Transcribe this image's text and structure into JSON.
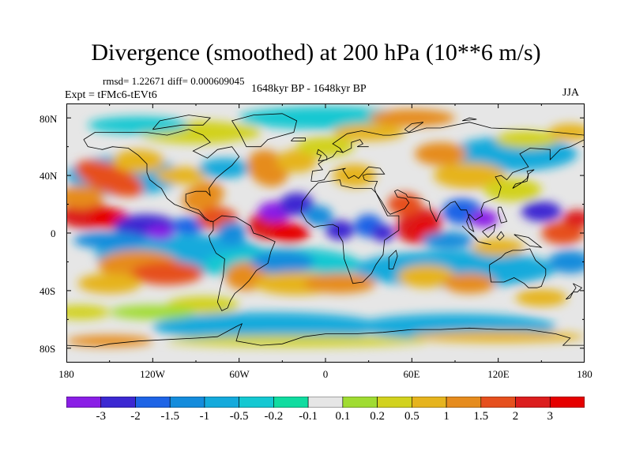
{
  "title": "Divergence (smoothed) at 200 hPa (10**6 m/s)",
  "stats": "rmsd= 1.22671 diff= 0.000609045",
  "experiment": "Expt = tFMc6-tEVt6",
  "period": "1648kyr BP - 1648kyr BP",
  "season": "JJA",
  "map": {
    "lat_labels": [
      "80N",
      "40N",
      "0",
      "40S",
      "80S"
    ],
    "lon_labels": [
      "180",
      "120W",
      "60W",
      "0",
      "60E",
      "120E",
      "180"
    ],
    "lat_values": [
      80,
      40,
      0,
      -40,
      -80
    ],
    "lon_values": [
      -180,
      -120,
      -60,
      0,
      60,
      120,
      180
    ]
  },
  "colorbar": {
    "levels": [
      "-3",
      "-2",
      "-1.5",
      "-1",
      "-0.5",
      "-0.2",
      "-0.1",
      "0.1",
      "0.2",
      "0.5",
      "1",
      "1.5",
      "2",
      "3"
    ],
    "colors": [
      "#8a1ee6",
      "#3c28d2",
      "#1e64e6",
      "#148cdc",
      "#14aadc",
      "#14c8d2",
      "#10dca0",
      "#e6e6e6",
      "#a0dc32",
      "#d2d21e",
      "#e6b41e",
      "#e68c1e",
      "#e6501e",
      "#dc1e1e",
      "#e60000"
    ]
  },
  "colors": {
    "neutral": "#e6e6e6",
    "coastline": "#000000"
  }
}
